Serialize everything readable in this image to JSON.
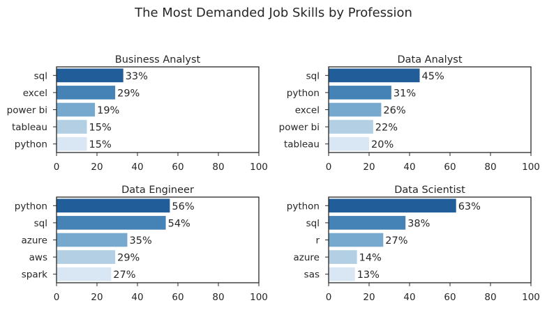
{
  "title": "The Most Demanded Job Skills by Profession",
  "colors": [
    "#215e99",
    "#4583b6",
    "#77a9ce",
    "#b3cfe3",
    "#d9e6f3"
  ],
  "chart_data": [
    {
      "type": "bar",
      "orientation": "horizontal",
      "title": "Business Analyst",
      "categories": [
        "sql",
        "excel",
        "power bi",
        "tableau",
        "python"
      ],
      "values": [
        33,
        29,
        19,
        15,
        15
      ],
      "labels": [
        "33%",
        "29%",
        "19%",
        "15%",
        "15%"
      ],
      "xlim": [
        0,
        100
      ],
      "xticks": [
        0,
        20,
        40,
        60,
        80,
        100
      ],
      "xlabel": "",
      "ylabel": "",
      "grid": false
    },
    {
      "type": "bar",
      "orientation": "horizontal",
      "title": "Data Analyst",
      "categories": [
        "sql",
        "python",
        "excel",
        "power bi",
        "tableau"
      ],
      "values": [
        45,
        31,
        26,
        22,
        20
      ],
      "labels": [
        "45%",
        "31%",
        "26%",
        "22%",
        "20%"
      ],
      "xlim": [
        0,
        100
      ],
      "xticks": [
        0,
        20,
        40,
        60,
        80,
        100
      ],
      "xlabel": "",
      "ylabel": "",
      "grid": false
    },
    {
      "type": "bar",
      "orientation": "horizontal",
      "title": "Data Engineer",
      "categories": [
        "python",
        "sql",
        "azure",
        "aws",
        "spark"
      ],
      "values": [
        56,
        54,
        35,
        29,
        27
      ],
      "labels": [
        "56%",
        "54%",
        "35%",
        "29%",
        "27%"
      ],
      "xlim": [
        0,
        100
      ],
      "xticks": [
        0,
        20,
        40,
        60,
        80,
        100
      ],
      "xlabel": "",
      "ylabel": "",
      "grid": false
    },
    {
      "type": "bar",
      "orientation": "horizontal",
      "title": "Data Scientist",
      "categories": [
        "python",
        "sql",
        "r",
        "azure",
        "sas"
      ],
      "values": [
        63,
        38,
        27,
        14,
        13
      ],
      "labels": [
        "63%",
        "38%",
        "27%",
        "14%",
        "13%"
      ],
      "xlim": [
        0,
        100
      ],
      "xticks": [
        0,
        20,
        40,
        60,
        80,
        100
      ],
      "xlabel": "",
      "ylabel": "",
      "grid": false
    }
  ]
}
